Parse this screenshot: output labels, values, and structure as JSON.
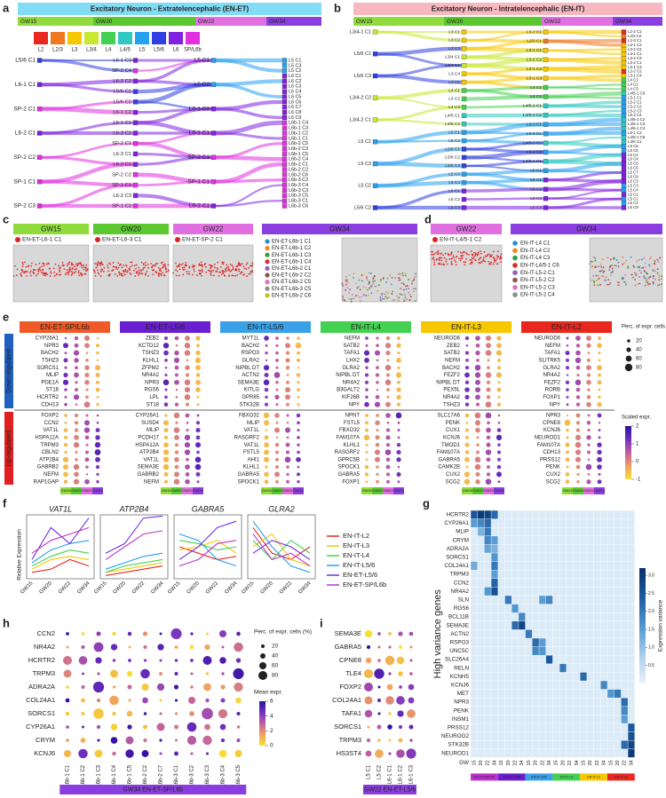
{
  "panel_letters": [
    "a",
    "b",
    "c",
    "d",
    "e",
    "f",
    "g",
    "h",
    "i"
  ],
  "a": {
    "title": "Excitatory Neuron - Extratelencephalic (EN-ET)",
    "gw": [
      {
        "name": "GW15",
        "color": "#8fdc3c"
      },
      {
        "name": "GW20",
        "color": "#5cc830"
      },
      {
        "name": "GW22",
        "color": "#e070e0"
      },
      {
        "name": "GW34",
        "color": "#8b3ee0"
      }
    ],
    "legend": [
      {
        "name": "L2",
        "color": "#e8281e"
      },
      {
        "name": "L2/3",
        "color": "#f07820"
      },
      {
        "name": "L3",
        "color": "#f5c800"
      },
      {
        "name": "L3/4",
        "color": "#c8e830"
      },
      {
        "name": "L4",
        "color": "#44d050"
      },
      {
        "name": "L4/5",
        "color": "#30c8c0"
      },
      {
        "name": "L5",
        "color": "#28a0f0"
      },
      {
        "name": "L5/6",
        "color": "#3040e0"
      },
      {
        "name": "L6",
        "color": "#8020e0"
      },
      {
        "name": "SP/L6b",
        "color": "#e030e0"
      }
    ],
    "columns": [
      [
        "L5/6 C1",
        "L6-1 C1",
        "SP-2 C1",
        "L6-2 C1",
        "SP-2 C2",
        "SP-1 C1",
        "SP-2 C3"
      ],
      [
        "L6-1 C3",
        "SP-2 C4",
        "L6-2 C2",
        "L5/6 C1",
        "L5/6 C2",
        "L6-1 C2",
        "L6-1 C1",
        "L6-3 C2",
        "SP-2 C1",
        "L6-3 C1",
        "L6-2 C1",
        "SP-2 C2",
        "SP-1 C1",
        "L6-2 C3",
        "SP-1 C2"
      ],
      [
        "L5 C1",
        "L5 C2",
        "L6-1 C2",
        "L6-1 C1",
        "SP-2 C1",
        "SP-1 C1",
        "L6-2 C1"
      ],
      [
        "L5 C1",
        "L5 C3",
        "L5 C2",
        "L6 C1",
        "L6 C2",
        "L6 C3",
        "L6 C4",
        "L6 C5",
        "L6 C6",
        "L6 C7",
        "L6 C8",
        "L6 C9",
        "L6b-1 C4",
        "L6b-1 C3",
        "L6b-1 C2",
        "L6b-1 C1",
        "L6b-2 C5",
        "L6b-2 C3",
        "L6b-1 C5",
        "L6b-2 C4",
        "L6b-2 C1",
        "L6b-2 C2",
        "L6b-2 C6",
        "L6b-3 C2",
        "L6b-3 C4",
        "L6b-3 C3",
        "L6b-3 C5",
        "L6b-3 C1",
        "L6b-3 C6"
      ]
    ]
  },
  "b": {
    "title": "Excitatory Neuron - Intratelencephalic (EN-IT)",
    "gw": [
      {
        "name": "GW15",
        "color": "#8fdc3c"
      },
      {
        "name": "GW20",
        "color": "#5cc830"
      },
      {
        "name": "GW22",
        "color": "#e070e0"
      },
      {
        "name": "GW34",
        "color": "#8b3ee0"
      }
    ],
    "columns": [
      [
        "L3/4-1 C1",
        "L5/6 C1",
        "L5/6 C3",
        "L3/4-2 C2",
        "L3/4-2 C1",
        "L5 C1",
        "L5 C3",
        "L5 C2",
        "L5/6 C2"
      ],
      [
        "L3 C1",
        "L3 C2",
        "L3 C3",
        "L3/4 C1",
        "L3/4 C2",
        "L3 C4",
        "L3 C5",
        "L4 C1",
        "L4 C2",
        "L4 C3",
        "L4/5 C1",
        "L4/5 C2",
        "L5 C1",
        "L5 C2",
        "L5/6 C1",
        "L5/6 C2",
        "L5/6 C3",
        "L5 C3",
        "L5 C4",
        "L6 C1",
        "L6 C2",
        "L6 C3"
      ],
      [
        "L3-2 C1",
        "L2/3 C1",
        "L3-1 C1",
        "L3-2 C2",
        "L3-1 C2",
        "L3-1 C3",
        "L4 C1",
        "L4 C2",
        "L4/5-2 C1",
        "L4/5-2 C2",
        "L5-1 C1",
        "L5-2 C1",
        "L4/5-1 C2",
        "L5-2 C2",
        "L4/5-1 C1",
        "L5 C1",
        "L6 C1",
        "L6 C2",
        "L6 C3",
        "L6 C4"
      ],
      [
        "L2-2 C1",
        "L2/3 C2",
        "L2-3 C1",
        "L3-1 C2",
        "L3-2 C2",
        "L3-1 C1",
        "L3-2 C3",
        "L3-2 C1",
        "L3-1 C3",
        "L2-2 C2",
        "L3-1 C4",
        "L4 C1",
        "L4 C2",
        "L4 C3",
        "L4/5-1 C6",
        "L5-1 C1",
        "L5-2 C1",
        "L5-2 C2",
        "L5-2 C3",
        "L5-2 C4",
        "L4/5-1 C2",
        "L4/5-1 C3",
        "L4/5-1 C4",
        "L5-1 C2",
        "L4/5-1 C5",
        "L4/5 C1",
        "L5 C5",
        "L5 C6",
        "L6 C2",
        "L6 C4",
        "L6 C5",
        "L6 C6",
        "L6 C7",
        "L6 C8",
        "L6 C3",
        "L5 C3",
        "L5 C4",
        "L6 C1",
        "L5 C1",
        "L5 C2",
        "L6 C9"
      ]
    ]
  },
  "c": {
    "gw": [
      {
        "name": "GW15",
        "color": "#8fdc3c"
      },
      {
        "name": "GW20",
        "color": "#5cc830"
      },
      {
        "name": "GW22",
        "color": "#e070e0"
      },
      {
        "name": "GW34",
        "color": "#8b3ee0"
      }
    ],
    "labels": [
      "EN-ET-L6-1 C1",
      "EN-ET-L6-3 C1",
      "EN-ET-SP-2 C1"
    ],
    "legend": [
      {
        "name": "EN-ET-L6b-1 C1",
        "color": "#2a8fd0"
      },
      {
        "name": "EN-ET-L6b-1 C2",
        "color": "#f08a20"
      },
      {
        "name": "EN-ET-L6b-1 C3",
        "color": "#30a040"
      },
      {
        "name": "EN-ET-L6b-1 C4",
        "color": "#d83030"
      },
      {
        "name": "EN-ET-L6b-2 C1",
        "color": "#9060c0"
      },
      {
        "name": "EN-ET-L6b-2 C2",
        "color": "#8c564b"
      },
      {
        "name": "EN-ET-L6b-2 C5",
        "color": "#e070c0"
      },
      {
        "name": "EN-ET-L6b-3 C5",
        "color": "#909090"
      },
      {
        "name": "EN-ET-L6b-2 C6",
        "color": "#c0c030"
      }
    ]
  },
  "d": {
    "gw": [
      {
        "name": "GW22",
        "color": "#e070e0"
      },
      {
        "name": "GW34",
        "color": "#8b3ee0"
      }
    ],
    "labels": [
      "EN-IT-L4/5-1 C2"
    ],
    "legend": [
      {
        "name": "EN-IT-L4 C1",
        "color": "#2a8fd0"
      },
      {
        "name": "EN-IT-L4 C2",
        "color": "#f08a20"
      },
      {
        "name": "EN-IT-L4 C3",
        "color": "#30a040"
      },
      {
        "name": "EN-IT-L4/5-1 C6",
        "color": "#d83030"
      },
      {
        "name": "EN-IT-L5-2 C1",
        "color": "#9060c0"
      },
      {
        "name": "EN-IT-L5-2 C2",
        "color": "#8c564b"
      },
      {
        "name": "EN-IT-L5-2 C3",
        "color": "#e070c0"
      },
      {
        "name": "EN-IT-L5-2 C4",
        "color": "#909090"
      }
    ]
  },
  "e": {
    "side": [
      "Down-regulated",
      "Up-regulated"
    ],
    "gw": [
      {
        "name": "GW15",
        "color": "#8fdc3c"
      },
      {
        "name": "GW20",
        "color": "#5cc830"
      },
      {
        "name": "GW22",
        "color": "#e070e0"
      },
      {
        "name": "GW34",
        "color": "#8b3ee0"
      }
    ],
    "size_title": "Perc. of expr. cells (%)",
    "size_ticks": [
      20,
      40,
      60,
      80
    ],
    "color_title": "Scaled expr.",
    "color_ticks": [
      2,
      1,
      0,
      -1
    ],
    "groups": [
      {
        "title": "EN-ET-SP/L6b",
        "color": "#f05a28",
        "down": [
          {
            "name": "CYP26A1",
            "highlight": true
          },
          {
            "name": "NPR3",
            "highlight": true
          },
          "BACH2",
          "TSHZ3",
          "SORCS1",
          {
            "name": "MLIP",
            "highlight": true
          },
          "PDE1A",
          "ST18",
          "HCRTR2",
          {
            "name": "CDH13",
            "highlight": true
          }
        ],
        "up": [
          "FOXP2",
          "CCN2",
          "VAT1L",
          "HSPA12A",
          "TRPM3",
          "CBLN2",
          "ATP2B4",
          "GABRB2",
          {
            "name": "NEFM",
            "highlight": true
          },
          "RAP1GAP"
        ]
      },
      {
        "title": "EN-ET-L5/6",
        "color": "#6a1fd1",
        "down": [
          "ZEB2",
          "KCTD12",
          "TSHZ3",
          {
            "name": "KLHL1",
            "highlight": true
          },
          "ZFPM2",
          "NR4A2",
          {
            "name": "NPR3",
            "highlight": true
          },
          "RGS6",
          "LPL",
          "ST18"
        ],
        "up": [
          {
            "name": "CYP26A1",
            "highlight": true
          },
          "SUSD4",
          {
            "name": "MLIP",
            "highlight": true
          },
          "PCDH17",
          "HSPA12A",
          "ATP2B4",
          "VAT1L",
          {
            "name": "SEMA3E",
            "highlight": true
          },
          "GABRB2",
          {
            "name": "NEFM",
            "highlight": true
          }
        ]
      },
      {
        "title": "EN-IT-L5/6",
        "color": "#3aa0e8",
        "down": [
          "MYT1L",
          "BACH2",
          "RSPO3",
          "GLRA2",
          "NIPBL DT",
          "ACTN2",
          {
            "name": "SEMA3E",
            "highlight": true
          },
          "KITLG",
          "GPR85",
          "STK32B"
        ],
        "up": [
          "FBXO32",
          {
            "name": "MLIP",
            "highlight": true
          },
          "VAT1L",
          "RASGRF2",
          "VAT1L",
          "FSTL5",
          "AHI1",
          {
            "name": "KLHL1",
            "highlight": true
          },
          "GABRA5",
          "SPOCK1"
        ]
      },
      {
        "title": "EN-IT-L4",
        "color": "#44d050",
        "down": [
          {
            "name": "NEFM",
            "highlight": true
          },
          "SATB2",
          "TAFA1",
          "LHX2",
          "GLRA2",
          "NIPBL DT",
          "NR4A2",
          "B3GALT2",
          "KIF26B",
          "NPY"
        ],
        "up": [
          "NPNT",
          "FSTL5",
          "FBXO32",
          "FAM107A",
          {
            "name": "KLHL1",
            "highlight": true
          },
          "RASGRF2",
          "GPRC5B",
          "SPOCK1",
          "GABRA5",
          {
            "name": "FOXP1",
            "highlight": true
          }
        ]
      },
      {
        "title": "EN-IT-L3",
        "color": "#f5c800",
        "down": [
          "NEUROD6",
          "ZEB2",
          "SATB2",
          {
            "name": "NEFM",
            "highlight": true
          },
          "BACH2",
          "FEZF2",
          "NIPBL DT",
          "PEX5L",
          "NR4A2",
          "TSHZ3"
        ],
        "up": [
          "SLC17A6",
          "PENK",
          "CUX1",
          "KCNJ6",
          "TMOD1",
          "FAM107A",
          "GABRA5",
          "CAMK2B",
          "CUX2",
          "SCG2"
        ]
      },
      {
        "title": "EN-IT-L2",
        "color": "#e8281e",
        "down": [
          "NEUROD6",
          {
            "name": "NEFM",
            "highlight": true
          },
          "TAFA1",
          "SLITRK5",
          "GLRA2",
          "NR4A2",
          "FEZF2",
          "RORB",
          {
            "name": "FOXP1",
            "highlight": true
          },
          "NPY"
        ],
        "up": [
          {
            "name": "NPR3",
            "highlight": true
          },
          "CPNE8",
          "KCNJ6",
          "NEUROD1",
          "FAM107A",
          {
            "name": "CDH13",
            "highlight": true
          },
          "PRSS12",
          "PENK",
          "CUX2",
          "SCG2"
        ]
      }
    ]
  },
  "f": {
    "y_label": "Relative Expression",
    "x": [
      "GW15",
      "GW20",
      "GW22",
      "GW34"
    ],
    "genes": [
      "VAT1L",
      "ATP2B4",
      "GABRA5",
      "GLRA2"
    ],
    "series": [
      {
        "name": "EN-IT-L2",
        "color": "#e8281e",
        "values": [
          [
            0.1,
            0.15,
            0.3,
            0.2
          ],
          [
            0.05,
            0.1,
            0.15,
            0.2
          ],
          [
            0.5,
            0.4,
            0.3,
            0.35
          ],
          [
            0.8,
            0.4,
            0.3,
            0.5
          ]
        ]
      },
      {
        "name": "EN-IT-L3",
        "color": "#f5c800",
        "values": [
          [
            0.15,
            0.3,
            0.35,
            0.3
          ],
          [
            0.1,
            0.15,
            0.2,
            0.25
          ],
          [
            0.45,
            0.5,
            0.6,
            0.4
          ],
          [
            0.5,
            0.7,
            0.3,
            0.2
          ]
        ]
      },
      {
        "name": "EN-IT-L4",
        "color": "#44d050",
        "values": [
          [
            0.2,
            0.35,
            0.45,
            0.4
          ],
          [
            0.1,
            0.2,
            0.25,
            0.3
          ],
          [
            0.6,
            0.55,
            0.45,
            0.5
          ],
          [
            0.6,
            0.3,
            0.6,
            0.4
          ]
        ]
      },
      {
        "name": "EN-IT-L5/6",
        "color": "#28a0f0",
        "values": [
          [
            0.25,
            0.45,
            0.55,
            0.6
          ],
          [
            0.15,
            0.25,
            0.35,
            0.4
          ],
          [
            0.7,
            0.6,
            0.3,
            0.2
          ],
          [
            0.9,
            0.5,
            0.2,
            0.1
          ]
        ]
      },
      {
        "name": "EN-ET-L5/6",
        "color": "#7030e0",
        "values": [
          [
            0.3,
            0.8,
            0.55,
            0.95
          ],
          [
            0.4,
            0.55,
            0.95,
            0.98
          ],
          [
            0.3,
            0.5,
            0.8,
            0.9
          ],
          [
            0.4,
            0.6,
            0.5,
            0.3
          ]
        ]
      },
      {
        "name": "EN-ET-SP/L6b",
        "color": "#c030d0",
        "values": [
          [
            0.4,
            0.6,
            0.7,
            0.8
          ],
          [
            0.3,
            0.5,
            0.7,
            0.75
          ],
          [
            0.2,
            0.3,
            0.55,
            0.6
          ],
          [
            0.7,
            0.3,
            0.4,
            0.2
          ]
        ]
      }
    ]
  },
  "g": {
    "y_label": "High variance genes",
    "x_label": "GW",
    "x_ticks": [
      15,
      20,
      22,
      34
    ],
    "groups": [
      {
        "name": "EN-ET-SP/L6b",
        "color": "#c030d0"
      },
      {
        "name": "EN-ET-L5/6",
        "color": "#6a1fd1"
      },
      {
        "name": "EN-IT-L5/6",
        "color": "#3aa0e8"
      },
      {
        "name": "EN-IT-L4",
        "color": "#44d050"
      },
      {
        "name": "EN-IT-L3",
        "color": "#f5c800"
      },
      {
        "name": "EN-IT-L2",
        "color": "#e8281e"
      }
    ],
    "genes": [
      "HCRTR2",
      "CYP26A1",
      "MLIP",
      "CRYM",
      "ADRA2A",
      "SORCS1",
      "COL24A1",
      "TRPM3",
      {
        "name": "CCN2",
        "highlight": true
      },
      "NR4A2",
      "SLN",
      "RGS6",
      "BCL11B",
      {
        "name": "SEMA3E",
        "highlight": true
      },
      "ACTN2",
      "RSPO3",
      "UNC5C",
      "SLC26A4",
      "RELN",
      "KCNH5",
      "KCNJ6",
      "MET",
      "NPR3",
      "PENK",
      "INSM1",
      "PRSS12",
      "NEUROG2",
      "STK32B",
      "NEUROD1"
    ],
    "cells": [
      [
        0,
        0,
        2.5
      ],
      [
        0,
        1,
        3
      ],
      [
        0,
        2,
        2.8
      ],
      [
        0,
        3,
        2.2
      ],
      [
        1,
        0,
        1.5
      ],
      [
        1,
        1,
        1.8
      ],
      [
        1,
        2,
        2.2
      ],
      [
        2,
        1,
        1.2
      ],
      [
        2,
        2,
        2.0
      ],
      [
        3,
        2,
        1.8
      ],
      [
        3,
        3,
        1.5
      ],
      [
        4,
        2,
        1.4
      ],
      [
        4,
        3,
        1.2
      ],
      [
        5,
        3,
        1.6
      ],
      [
        6,
        0,
        1.3
      ],
      [
        6,
        3,
        2.0
      ],
      [
        7,
        3,
        1.5
      ],
      [
        8,
        3,
        2.3
      ],
      [
        9,
        2,
        1.6
      ],
      [
        9,
        3,
        2.6
      ],
      [
        10,
        5,
        2.0
      ],
      [
        10,
        10,
        1.5
      ],
      [
        10,
        11,
        1.8
      ],
      [
        11,
        6,
        1.6
      ],
      [
        12,
        7,
        1.8
      ],
      [
        13,
        6,
        2.2
      ],
      [
        13,
        7,
        2.8
      ],
      [
        14,
        8,
        2.0
      ],
      [
        15,
        9,
        2.2
      ],
      [
        15,
        10,
        1.5
      ],
      [
        16,
        9,
        1.8
      ],
      [
        16,
        10,
        1.6
      ],
      [
        17,
        11,
        2.4
      ],
      [
        18,
        13,
        2.0
      ],
      [
        19,
        16,
        2.2
      ],
      [
        20,
        19,
        1.8
      ],
      [
        21,
        20,
        1.6
      ],
      [
        21,
        21,
        2.0
      ],
      [
        22,
        22,
        2.2
      ],
      [
        23,
        22,
        1.8
      ],
      [
        24,
        22,
        1.5
      ],
      [
        25,
        23,
        2.4
      ],
      [
        26,
        23,
        2.6
      ],
      [
        27,
        22,
        2.2
      ],
      [
        27,
        23,
        2.8
      ],
      [
        28,
        23,
        3.0
      ]
    ],
    "color_title": "Expression variance",
    "clim": [
      0,
      3.2
    ],
    "color_ticks": [
      {
        "value": 0.5,
        "label": "0.5"
      },
      {
        "value": 1,
        "label": "1.0"
      },
      {
        "value": 1.5,
        "label": "1.5"
      },
      {
        "value": 2,
        "label": "2.0"
      },
      {
        "value": 2.5,
        "label": "2.5"
      },
      {
        "value": 3,
        "label": "3.0"
      }
    ]
  },
  "h": {
    "genes": [
      {
        "name": "CCN2",
        "highlight": true
      },
      "NR4A2",
      "HCRTR2",
      "TRPM3",
      "ADRA2A",
      "COL24A1",
      "SORCS1",
      "CYP26A1",
      "CRYM",
      "KCNJ6"
    ],
    "clusters": [
      "L6b-1 C1",
      "L6b-1 C2",
      "L6b-1 C3",
      "L6b-1 C4",
      "L6b-1 C5",
      "L6b-2 C2",
      "L6b-2 C7",
      "L6b-3 C1",
      "L6b-3 C2",
      "L6b-3 C3",
      "L6b-3 C4",
      "L6b-3 C5"
    ],
    "footer": "GW34 EN-ET-SP/L6b",
    "size_title": "Perc. of expr. cells (%)",
    "size_ticks": [
      20,
      40,
      60,
      80
    ],
    "color_title": "Mean expr.",
    "color_ticks": [
      6,
      4,
      2,
      0
    ]
  },
  "i": {
    "genes": [
      {
        "name": "SEMA3E",
        "highlight": true
      },
      "GABRA5",
      "CPNE8",
      "TLE4",
      "FOXP2",
      "COL24A1",
      "TAFA1",
      "SORCS1",
      "TRPM3",
      "HS3ST4"
    ],
    "clusters": [
      "L5 C1",
      "L5 C2",
      "L6-1 C1",
      "L6-1 C2",
      "L6-1 C3"
    ],
    "footer": "GW22 EN-ET-L5/6"
  }
}
